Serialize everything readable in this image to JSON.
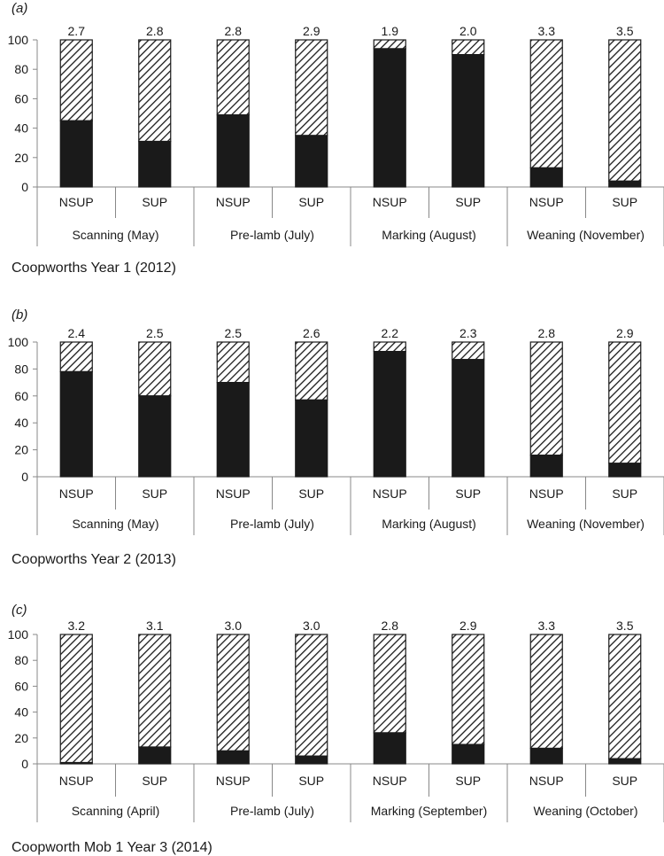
{
  "chart_data": [
    {
      "type": "bar",
      "panel_label": "(a)",
      "caption": "Coopworths Year 1 (2012)",
      "ylim": [
        0,
        100
      ],
      "yticks": [
        "0",
        "20",
        "40",
        "60",
        "80",
        "100"
      ],
      "categories": [
        "NSUP",
        "SUP",
        "NSUP",
        "SUP",
        "NSUP",
        "SUP",
        "NSUP",
        "SUP"
      ],
      "groups": [
        "Scanning (May)",
        "Pre-lamb (July)",
        "Marking (August)",
        "Weaning (November)"
      ],
      "data_labels": [
        "2.7",
        "2.8",
        "2.8",
        "2.9",
        "1.9",
        "2.0",
        "3.3",
        "3.5"
      ],
      "series": [
        {
          "values": [
            45,
            31,
            49,
            35,
            94,
            90,
            13,
            4
          ],
          "color": "#1a1a1a"
        },
        {
          "values": [
            55,
            69,
            51,
            65,
            6,
            10,
            87,
            96
          ],
          "pattern": "diagonal-hatch"
        }
      ]
    },
    {
      "type": "bar",
      "panel_label": "(b)",
      "caption": "Coopworths Year 2 (2013)",
      "ylim": [
        0,
        100
      ],
      "yticks": [
        "0",
        "20",
        "40",
        "60",
        "80",
        "100"
      ],
      "categories": [
        "NSUP",
        "SUP",
        "NSUP",
        "SUP",
        "NSUP",
        "SUP",
        "NSUP",
        "SUP"
      ],
      "groups": [
        "Scanning (May)",
        "Pre-lamb (July)",
        "Marking (August)",
        "Weaning (November)"
      ],
      "data_labels": [
        "2.4",
        "2.5",
        "2.5",
        "2.6",
        "2.2",
        "2.3",
        "2.8",
        "2.9"
      ],
      "series": [
        {
          "values": [
            78,
            60,
            70,
            57,
            93,
            87,
            16,
            10
          ],
          "color": "#1a1a1a"
        },
        {
          "values": [
            22,
            40,
            30,
            43,
            7,
            13,
            84,
            90
          ],
          "pattern": "diagonal-hatch"
        }
      ]
    },
    {
      "type": "bar",
      "panel_label": "(c)",
      "caption": "Coopworth Mob 1 Year 3 (2014)",
      "ylim": [
        0,
        100
      ],
      "yticks": [
        "0",
        "20",
        "40",
        "60",
        "80",
        "100"
      ],
      "categories": [
        "NSUP",
        "SUP",
        "NSUP",
        "SUP",
        "NSUP",
        "SUP",
        "NSUP",
        "SUP"
      ],
      "groups": [
        "Scanning (April)",
        "Pre-lamb (July)",
        "Marking (September)",
        "Weaning (October)"
      ],
      "data_labels": [
        "3.2",
        "3.1",
        "3.0",
        "3.0",
        "2.8",
        "2.9",
        "3.3",
        "3.5"
      ],
      "series": [
        {
          "values": [
            1,
            13,
            10,
            6,
            24,
            15,
            12,
            4
          ],
          "color": "#1a1a1a"
        },
        {
          "values": [
            99,
            87,
            90,
            94,
            76,
            85,
            88,
            96
          ],
          "pattern": "diagonal-hatch"
        }
      ]
    }
  ]
}
